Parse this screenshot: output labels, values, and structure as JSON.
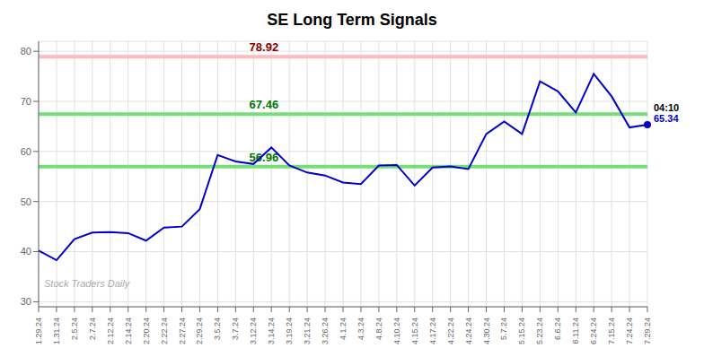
{
  "chart_data": {
    "type": "line",
    "title": "SE Long Term Signals",
    "categories": [
      "1.29.24",
      "1.31.24",
      "2.5.24",
      "2.7.24",
      "2.12.24",
      "2.14.24",
      "2.20.24",
      "2.22.24",
      "2.27.24",
      "2.29.24",
      "3.5.24",
      "3.7.24",
      "3.12.24",
      "3.14.24",
      "3.19.24",
      "3.21.24",
      "3.26.24",
      "4.1.24",
      "4.3.24",
      "4.8.24",
      "4.10.24",
      "4.15.24",
      "4.17.24",
      "4.22.24",
      "4.24.24",
      "4.30.24",
      "5.7.24",
      "5.15.24",
      "5.23.24",
      "6.6.24",
      "6.11.24",
      "6.24.24",
      "7.15.24",
      "7.24.24",
      "7.29.24"
    ],
    "values": [
      40.2,
      38.3,
      42.5,
      43.8,
      43.9,
      43.7,
      42.2,
      44.8,
      45.0,
      48.5,
      59.3,
      58.0,
      57.5,
      60.8,
      57.2,
      55.8,
      55.2,
      53.8,
      53.5,
      57.2,
      57.3,
      53.2,
      56.8,
      57.0,
      56.5,
      63.5,
      66.0,
      63.5,
      74.0,
      72.0,
      67.8,
      75.5,
      71.0,
      64.8,
      65.34
    ],
    "color": "#0000cc",
    "ylim": [
      29,
      82
    ],
    "yticks": [
      30,
      40,
      50,
      60,
      70,
      80
    ],
    "grid": true,
    "reference_lines": [
      {
        "value": 78.92,
        "label": "78.92",
        "color": "#ffbbbb",
        "label_color": "#880000"
      },
      {
        "value": 67.46,
        "label": "67.46",
        "color": "#77dd77",
        "label_color": "#007700"
      },
      {
        "value": 56.96,
        "label": "56.96",
        "color": "#77dd77",
        "label_color": "#007700"
      }
    ],
    "annotations": [
      {
        "x": "7.29.24",
        "y": 65.34,
        "text": "04:10",
        "color": "#000000"
      },
      {
        "x": "7.29.24",
        "y": 65.34,
        "text": "65.34",
        "color": "#0000cc"
      }
    ],
    "watermark": "Stock Traders Daily"
  }
}
